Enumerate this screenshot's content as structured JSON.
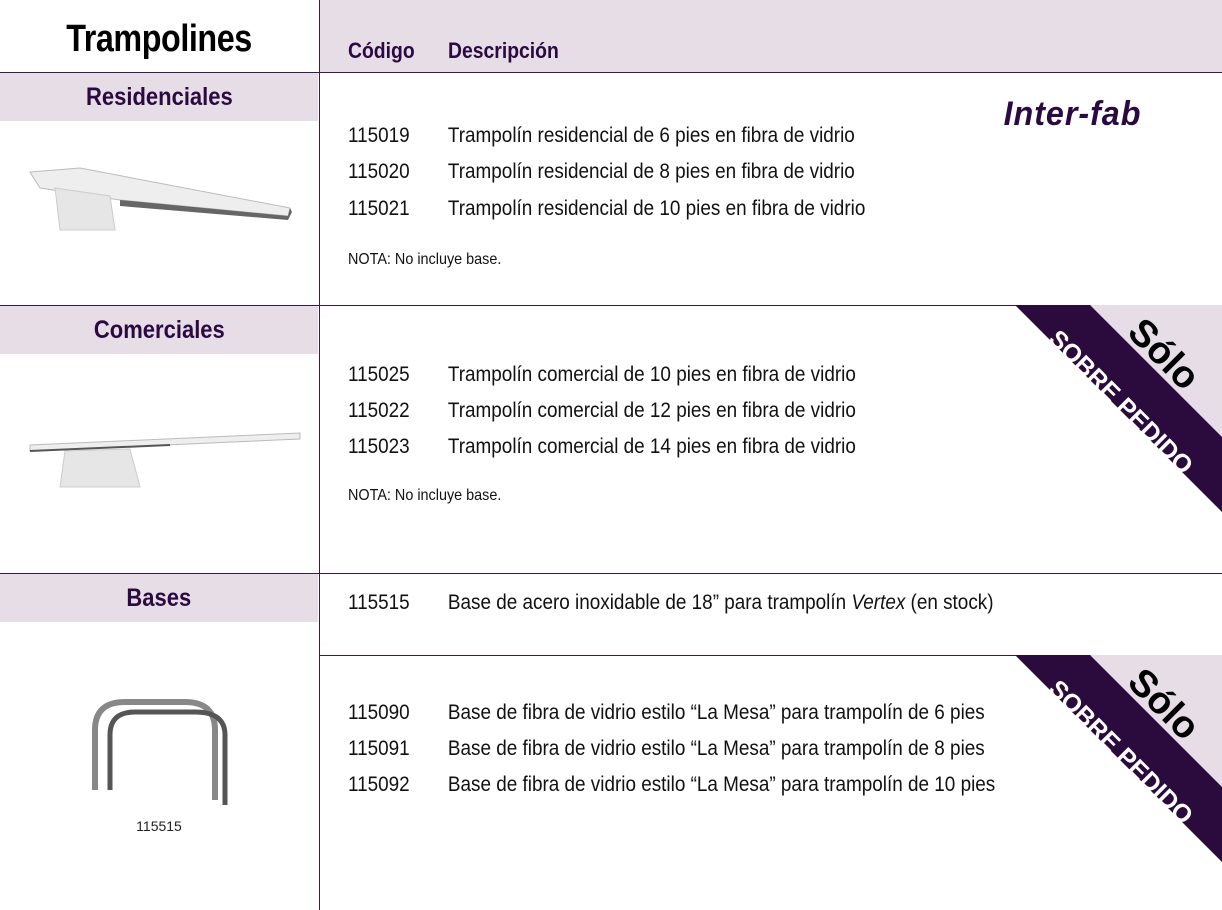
{
  "title": "Trampolines",
  "columns": {
    "code": "Código",
    "description": "Descripción"
  },
  "brand": "Inter-fab",
  "banner": {
    "line1": "Sólo",
    "line2": "SOBRE PEDIDO",
    "color_dark": "#2b0a3d",
    "color_light": "#e6dde6"
  },
  "sections": [
    {
      "label": "Residenciales",
      "items": [
        {
          "code": "115019",
          "desc": "Trampolín residencial de 6 pies en fibra de vidrio"
        },
        {
          "code": "115020",
          "desc": "Trampolín residencial de 8 pies en fibra de vidrio"
        },
        {
          "code": "115021",
          "desc": "Trampolín residencial de 10 pies en fibra de vidrio"
        }
      ],
      "note": "NOTA: No incluye base."
    },
    {
      "label": "Comerciales",
      "items": [
        {
          "code": "115025",
          "desc": "Trampolín comercial de 10 pies en fibra de vidrio"
        },
        {
          "code": "115022",
          "desc": "Trampolín comercial de 12 pies en fibra de vidrio"
        },
        {
          "code": "115023",
          "desc": "Trampolín comercial de 14 pies en fibra de vidrio"
        }
      ],
      "note": "NOTA: No incluye base."
    },
    {
      "label": "Bases",
      "items": [
        {
          "code": "115515",
          "desc_a": "Base de acero inoxidable de 18” para trampolín ",
          "desc_em": "Vertex",
          "desc_b": " (en stock)"
        },
        {
          "code": "115090",
          "desc": "Base de fibra de vidrio estilo “La Mesa” para trampolín de 6 pies"
        },
        {
          "code": "115091",
          "desc": "Base de fibra de vidrio estilo “La Mesa” para trampolín de 8 pies"
        },
        {
          "code": "115092",
          "desc": "Base de fibra de vidrio estilo “La Mesa” para trampolín de 10 pies"
        }
      ],
      "image_caption": "115515"
    }
  ]
}
